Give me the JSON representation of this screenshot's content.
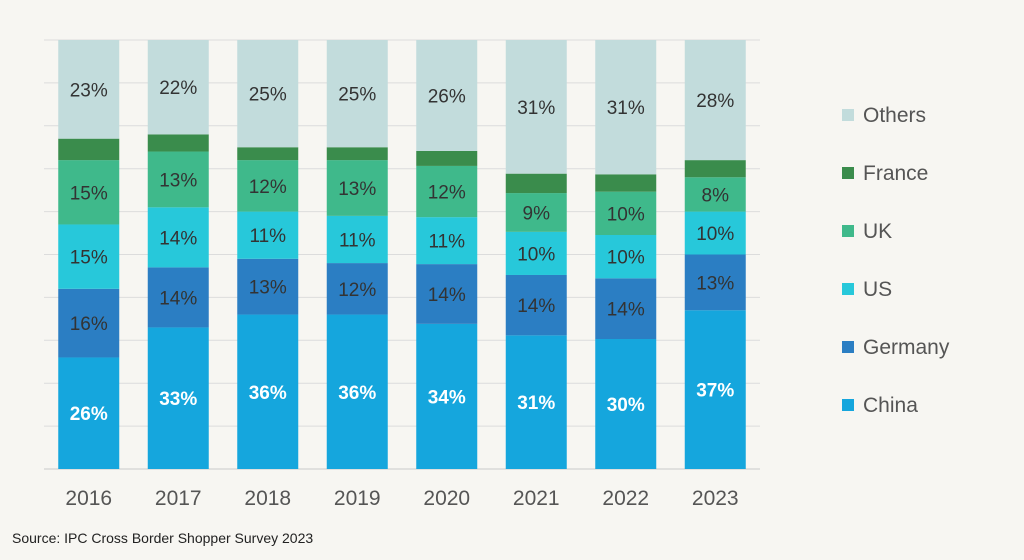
{
  "chart_data": {
    "type": "bar",
    "stacked": true,
    "orientation": "vertical",
    "normalized_percent": true,
    "categories": [
      "2016",
      "2017",
      "2018",
      "2019",
      "2020",
      "2021",
      "2022",
      "2023"
    ],
    "ylim": [
      0,
      100
    ],
    "grid": true,
    "legend_position": "right",
    "series": [
      {
        "name": "China",
        "color": "#15a6dd",
        "values": [
          26,
          33,
          36,
          36,
          34,
          31,
          30,
          37
        ],
        "labels": [
          "26%",
          "33%",
          "36%",
          "36%",
          "34%",
          "31%",
          "30%",
          "37%"
        ]
      },
      {
        "name": "Germany",
        "color": "#2b7ec3",
        "values": [
          16,
          14,
          13,
          12,
          14,
          14,
          14,
          13
        ],
        "labels": [
          "16%",
          "14%",
          "13%",
          "12%",
          "14%",
          "14%",
          "14%",
          "13%"
        ]
      },
      {
        "name": "US",
        "color": "#27c8da",
        "values": [
          15,
          14,
          11,
          11,
          11,
          10,
          10,
          10
        ],
        "labels": [
          "15%",
          "14%",
          "11%",
          "11%",
          "11%",
          "10%",
          "10%",
          "10%"
        ]
      },
      {
        "name": "UK",
        "color": "#3fb98b",
        "values": [
          15,
          13,
          12,
          13,
          12,
          9,
          10,
          8
        ],
        "labels": [
          "15%",
          "13%",
          "12%",
          "13%",
          "12%",
          "9%",
          "10%",
          "8%"
        ]
      },
      {
        "name": "France",
        "color": "#3a8c4c",
        "values": [
          5,
          4,
          3,
          3,
          3.5,
          4.5,
          4,
          4
        ],
        "labels": [
          "",
          "",
          "",
          "",
          "",
          "",
          "",
          ""
        ]
      },
      {
        "name": "Others",
        "color": "#c2dcdc",
        "values": [
          23,
          22,
          25,
          25,
          26,
          31,
          31,
          28
        ],
        "labels": [
          "23%",
          "22%",
          "25%",
          "25%",
          "26%",
          "31%",
          "31%",
          "28%"
        ]
      }
    ],
    "legend_order": [
      "Others",
      "France",
      "UK",
      "US",
      "Germany",
      "China"
    ]
  },
  "source_text": "Source: IPC Cross Border Shopper Survey 2023"
}
